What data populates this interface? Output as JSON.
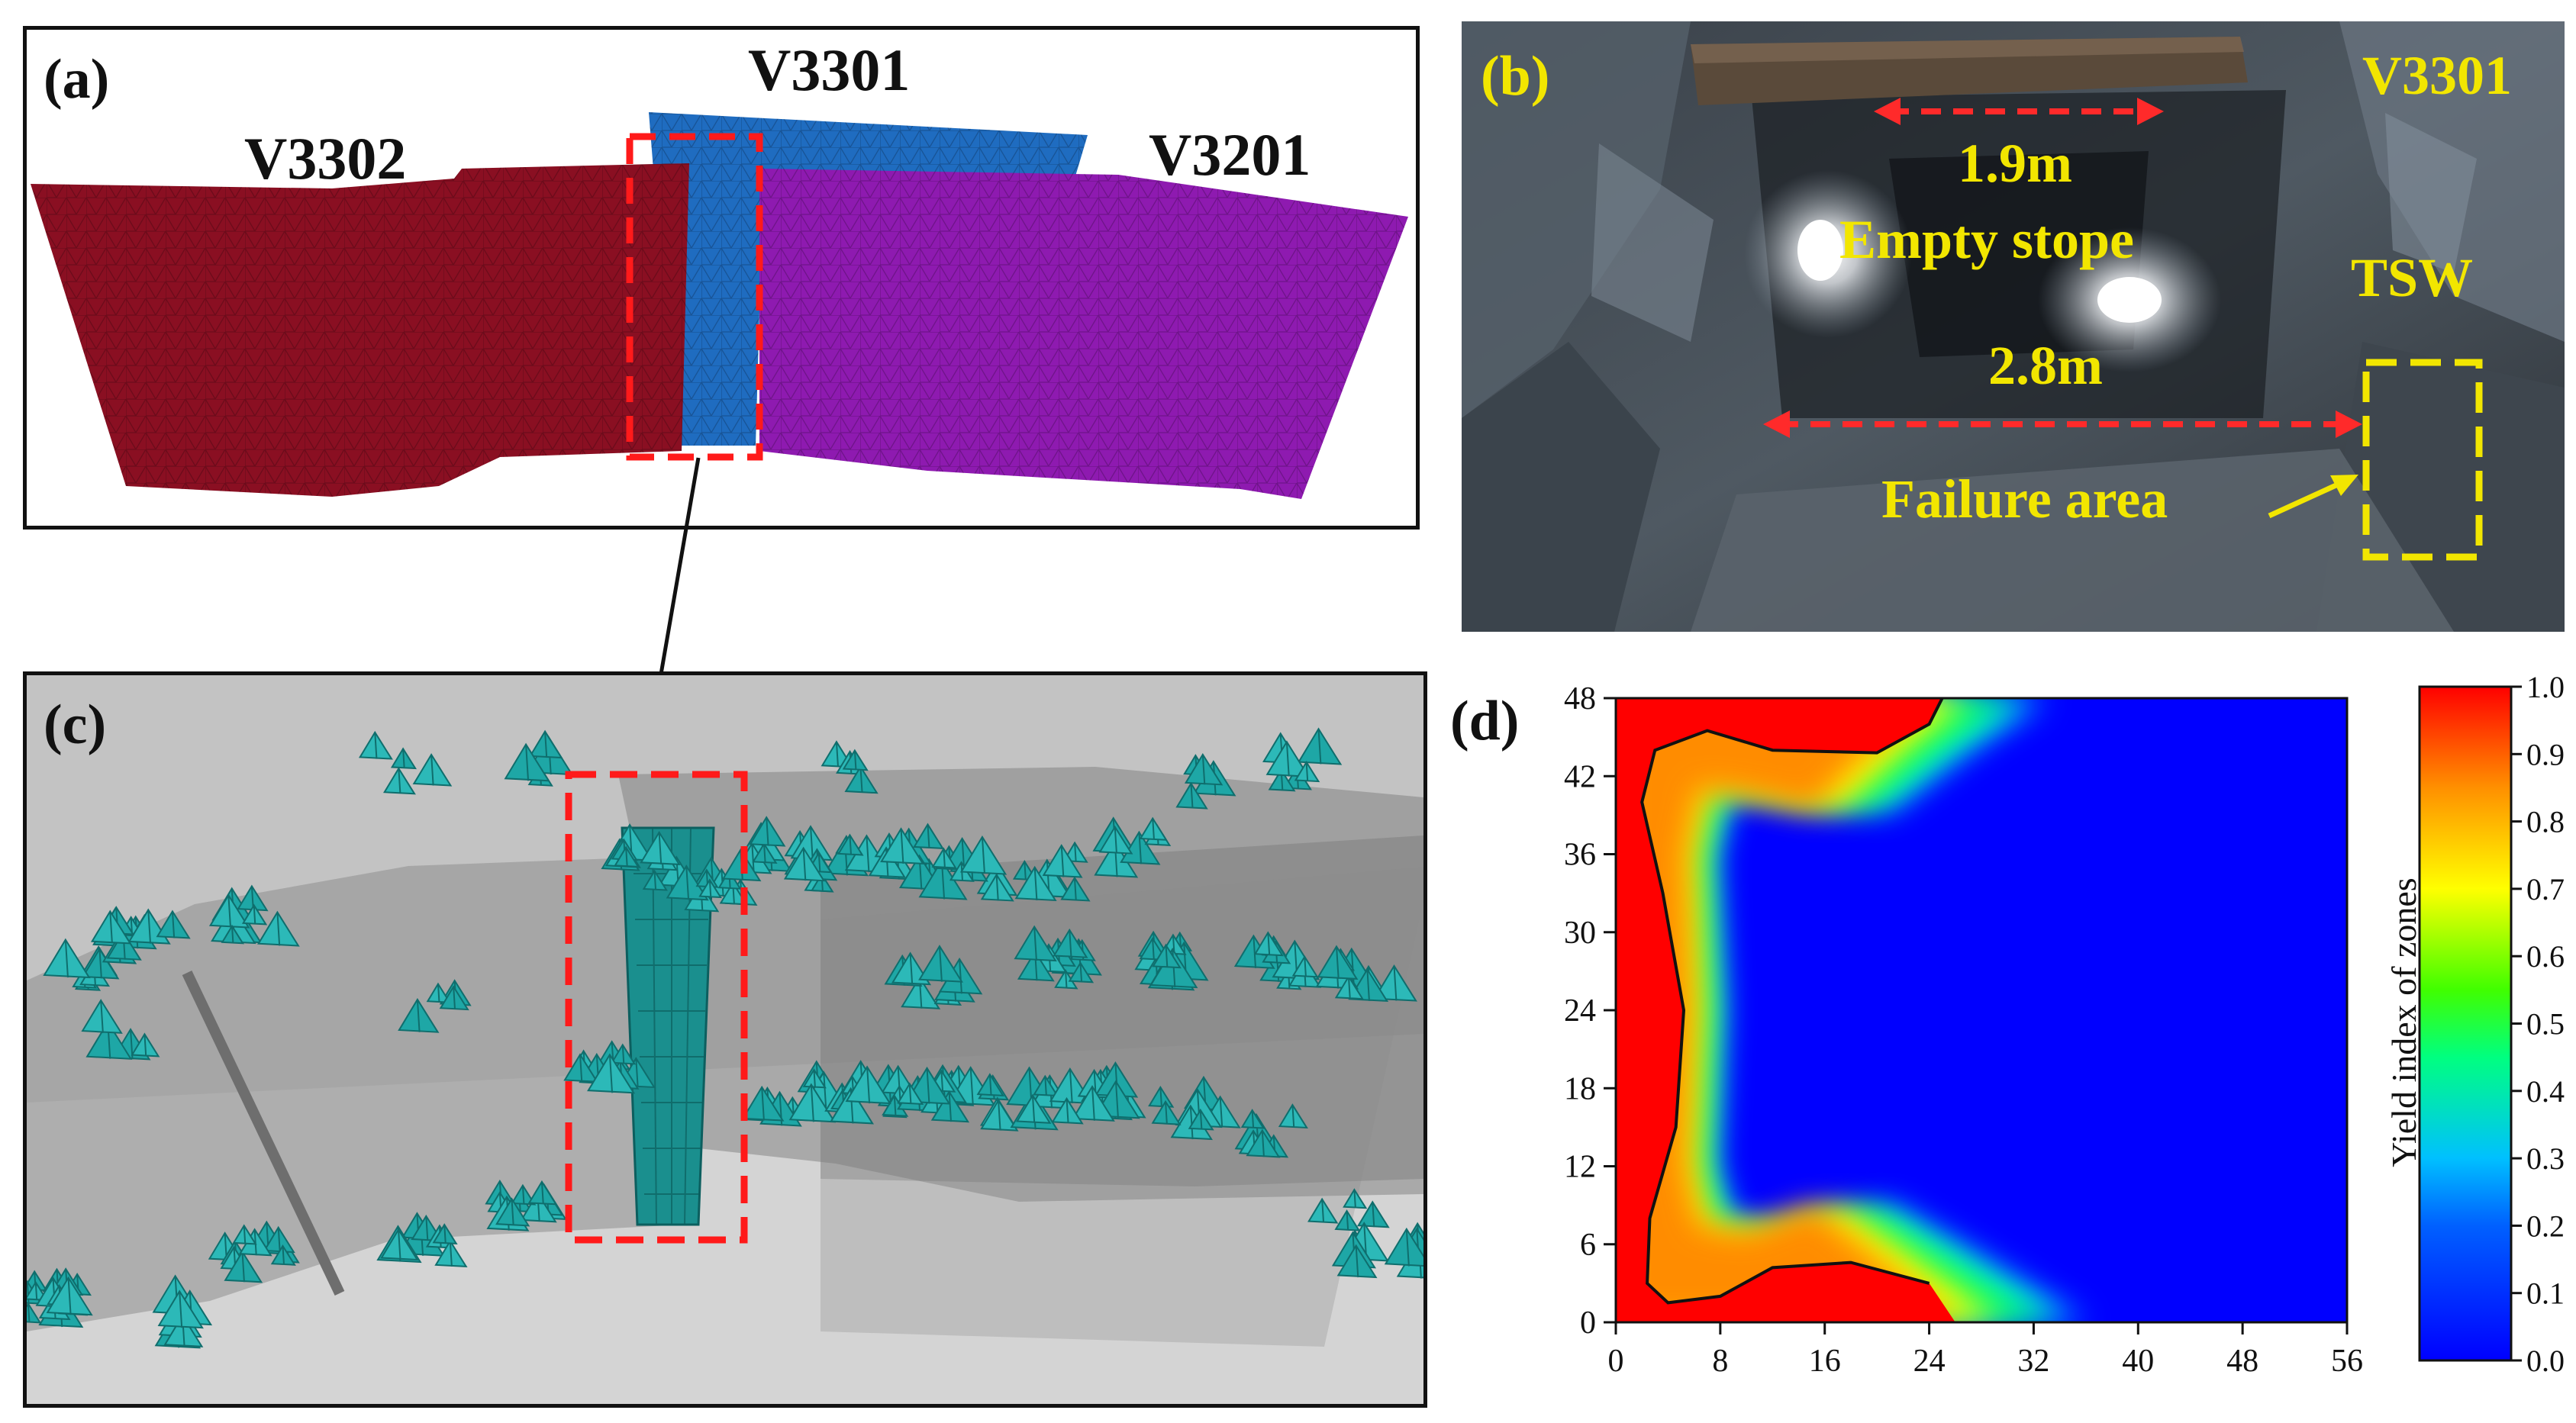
{
  "panel_a": {
    "tag": "(a)",
    "labels": [
      "V3302",
      "V3301",
      "V3201"
    ],
    "colors": {
      "v3302": "#8a0f22",
      "v3301": "#1f6cc0",
      "v3201": "#8e1ab0",
      "highlight": "#ff1a1a"
    }
  },
  "panel_b": {
    "tag": "(b)",
    "corner_label": "V3301",
    "dim_top": "1.9m",
    "caption": "Empty stope",
    "side_label": "TSW",
    "dim_mid": "2.8m",
    "failure_label": "Failure area",
    "colors": {
      "text": "#f2e600",
      "dims": "#ff2a2a"
    }
  },
  "panel_c": {
    "tag": "(c)",
    "colors": {
      "element": "#1ea7a6",
      "background": "#b9b9b9",
      "highlight": "#ff1a1a"
    }
  },
  "panel_d": {
    "tag": "(d)",
    "x_ticks": [
      "0",
      "8",
      "16",
      "24",
      "32",
      "40",
      "48",
      "56"
    ],
    "y_ticks": [
      "0",
      "6",
      "12",
      "18",
      "24",
      "30",
      "36",
      "42",
      "48"
    ],
    "colorbar_ticks": [
      "0.0",
      "0.1",
      "0.2",
      "0.3",
      "0.4",
      "0.5",
      "0.6",
      "0.7",
      "0.8",
      "0.9",
      "1.0"
    ],
    "colorbar_label": "Yield index of zones",
    "chart_data": {
      "type": "heatmap",
      "xlim": [
        0,
        56
      ],
      "ylim": [
        0,
        48
      ],
      "value_range": [
        0.0,
        1.0
      ],
      "colormap": [
        "#0000ff",
        "#00c0ff",
        "#00ff40",
        "#ffff00",
        "#ff8000",
        "#ff0000"
      ],
      "yield_contour": [
        [
          0,
          48
        ],
        [
          25,
          48
        ],
        [
          24,
          46
        ],
        [
          20,
          43.8
        ],
        [
          12,
          44
        ],
        [
          7,
          45.5
        ],
        [
          3,
          44
        ],
        [
          2,
          40
        ],
        [
          3.6,
          33
        ],
        [
          5.2,
          24
        ],
        [
          4.6,
          15
        ],
        [
          2.6,
          8
        ],
        [
          2.4,
          3
        ],
        [
          4,
          1.5
        ],
        [
          8,
          2
        ],
        [
          12,
          4.2
        ],
        [
          18,
          4.6
        ],
        [
          24,
          3
        ],
        [
          26,
          0
        ],
        [
          0,
          0
        ]
      ],
      "elastic_boundary": [
        [
          33,
          48
        ],
        [
          27,
          44
        ],
        [
          21,
          39.4
        ],
        [
          14,
          40.5
        ],
        [
          9,
          41
        ],
        [
          7.6,
          36
        ],
        [
          8.2,
          24
        ],
        [
          7.6,
          12
        ],
        [
          9,
          7.5
        ],
        [
          14,
          7
        ],
        [
          21,
          9
        ],
        [
          27,
          5.5
        ],
        [
          36,
          0
        ]
      ],
      "grid": false
    }
  }
}
